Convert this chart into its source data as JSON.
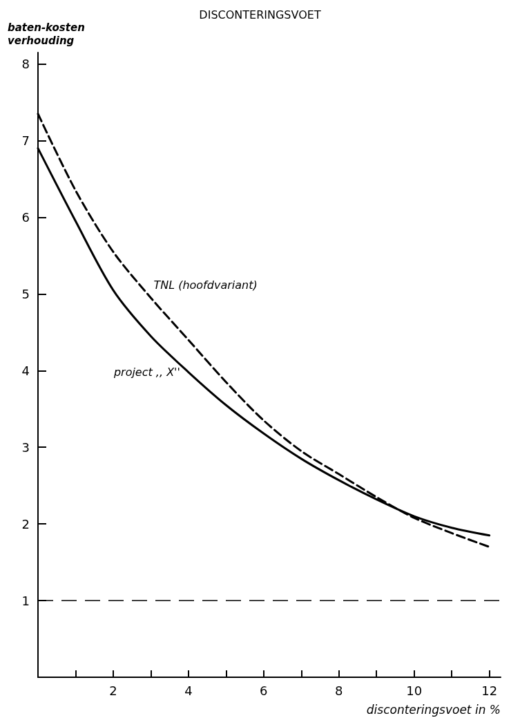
{
  "chart_data": {
    "type": "line",
    "title": "DISCONTERINGSVOET",
    "xlabel": "disconteringsvoet in %",
    "ylabel": "baten-kosten\nverhouding",
    "x": [
      0,
      1,
      2,
      3,
      4,
      5,
      6,
      7,
      8,
      9,
      10,
      11,
      12
    ],
    "series": [
      {
        "name": "project ,, X''",
        "color": "#000000",
        "line_style": "solid",
        "values": [
          6.9,
          5.95,
          5.05,
          4.45,
          3.98,
          3.55,
          3.18,
          2.85,
          2.57,
          2.32,
          2.1,
          1.95,
          1.85
        ]
      },
      {
        "name": "TNL (hoofdvariant)",
        "color": "#000000",
        "line_style": "dashed",
        "values": [
          7.35,
          6.35,
          5.55,
          4.95,
          4.4,
          3.85,
          3.35,
          2.95,
          2.65,
          2.35,
          2.08,
          1.88,
          1.7
        ]
      }
    ],
    "xlim": [
      0,
      12.3
    ],
    "xticks": [
      {
        "value": 1,
        "label": null
      },
      2,
      {
        "value": 3,
        "label": null
      },
      4,
      {
        "value": 5,
        "label": null
      },
      6,
      {
        "value": 7,
        "label": null
      },
      8,
      {
        "value": 9,
        "label": null
      },
      10,
      {
        "value": 11,
        "label": null
      },
      12
    ],
    "ylim": [
      0,
      8.15
    ],
    "yticks": [
      1,
      2,
      3,
      4,
      5,
      6,
      7,
      8
    ],
    "ref_lines": [
      {
        "axis": "y",
        "value": 1,
        "label": null,
        "line_style": "dashed",
        "color": "#000000"
      }
    ],
    "marker": "none"
  }
}
